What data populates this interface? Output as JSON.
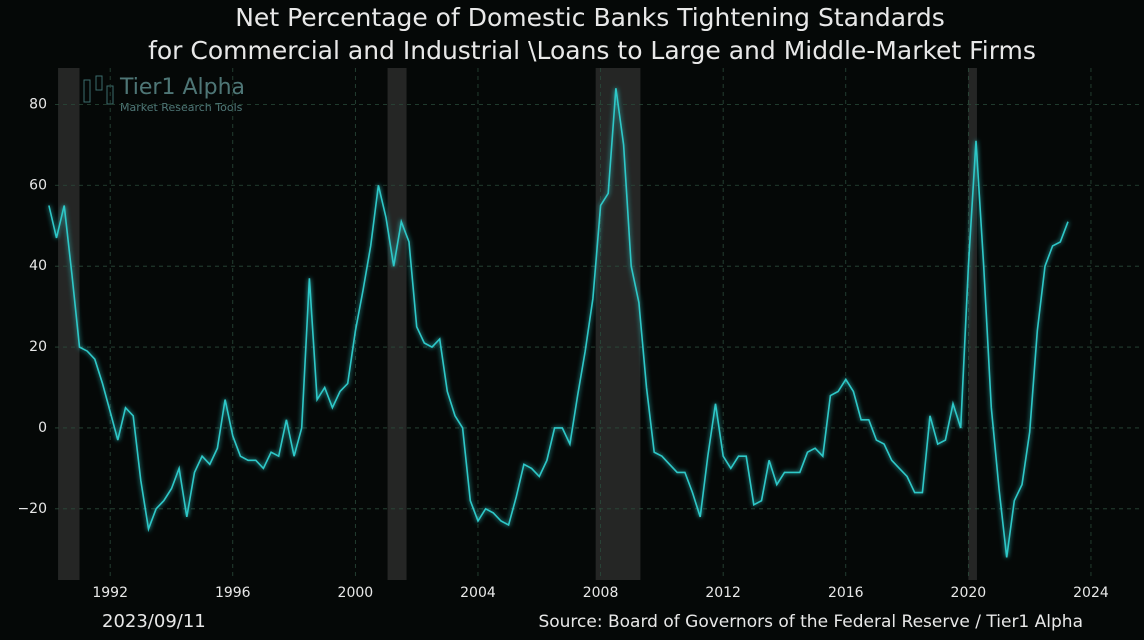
{
  "chart_data": {
    "type": "line",
    "title": [
      "Net Percentage of Domestic Banks Tightening Standards",
      "for Commercial and Industrial \\Loans to Large and Middle-Market Firms"
    ],
    "logo": {
      "name": "Tier1 Alpha",
      "tagline": "Market  Research Tools"
    },
    "date": "2023/09/11",
    "source": "Source: Board of Governors of the Federal Reserve / Tier1 Alpha",
    "x": [
      1990.0,
      1990.25,
      1990.5,
      1990.75,
      1991.0,
      1991.25,
      1991.5,
      1991.75,
      1992.0,
      1992.25,
      1992.5,
      1992.75,
      1993.0,
      1993.25,
      1993.5,
      1993.75,
      1994.0,
      1994.25,
      1994.5,
      1994.75,
      1995.0,
      1995.25,
      1995.5,
      1995.75,
      1996.0,
      1996.25,
      1996.5,
      1996.75,
      1997.0,
      1997.25,
      1997.5,
      1997.75,
      1998.0,
      1998.25,
      1998.5,
      1998.75,
      1999.0,
      1999.25,
      1999.5,
      1999.75,
      2000.0,
      2000.25,
      2000.5,
      2000.75,
      2001.0,
      2001.25,
      2001.5,
      2001.75,
      2002.0,
      2002.25,
      2002.5,
      2002.75,
      2003.0,
      2003.25,
      2003.5,
      2003.75,
      2004.0,
      2004.25,
      2004.5,
      2004.75,
      2005.0,
      2005.25,
      2005.5,
      2005.75,
      2006.0,
      2006.25,
      2006.5,
      2006.75,
      2007.0,
      2007.25,
      2007.5,
      2007.75,
      2008.0,
      2008.25,
      2008.5,
      2008.75,
      2009.0,
      2009.25,
      2009.5,
      2009.75,
      2010.0,
      2010.25,
      2010.5,
      2010.75,
      2011.0,
      2011.25,
      2011.5,
      2011.75,
      2012.0,
      2012.25,
      2012.5,
      2012.75,
      2013.0,
      2013.25,
      2013.5,
      2013.75,
      2014.0,
      2014.25,
      2014.5,
      2014.75,
      2015.0,
      2015.25,
      2015.5,
      2015.75,
      2016.0,
      2016.25,
      2016.5,
      2016.75,
      2017.0,
      2017.25,
      2017.5,
      2017.75,
      2018.0,
      2018.25,
      2018.5,
      2018.75,
      2019.0,
      2019.25,
      2019.5,
      2019.75,
      2020.0,
      2020.25,
      2020.5,
      2020.75,
      2021.0,
      2021.25,
      2021.5,
      2021.75,
      2022.0,
      2022.25,
      2022.5,
      2022.75,
      2023.0,
      2023.25
    ],
    "series": [
      {
        "name": "Net Percentage",
        "color": "#2ec8c8",
        "values": [
          55,
          47,
          55,
          38,
          20,
          19,
          17,
          11,
          4,
          -3,
          5,
          3,
          -13,
          -25,
          -20,
          -18,
          -15,
          -10,
          -22,
          -11,
          -7,
          -9,
          -5,
          7,
          -2,
          -7,
          -8,
          -8,
          -10,
          -6,
          -7,
          2,
          -7,
          0,
          37,
          7,
          10,
          5,
          9,
          11,
          24,
          34,
          45,
          60,
          52,
          40,
          51,
          46,
          25,
          21,
          20,
          22,
          9,
          3,
          0,
          -18,
          -23,
          -20,
          -21,
          -23,
          -24,
          -17,
          -9,
          -10,
          -12,
          -8,
          0,
          0,
          -4,
          8,
          19,
          32,
          55,
          58,
          84,
          70,
          40,
          31,
          10,
          -6,
          -7,
          -9,
          -11,
          -11,
          -16,
          -22,
          -7,
          6,
          -7,
          -10,
          -7,
          -7,
          -19,
          -18,
          -8,
          -14,
          -11,
          -11,
          -11,
          -6,
          -5,
          -7,
          8,
          9,
          12,
          9,
          2,
          2,
          -3,
          -4,
          -8,
          -10,
          -12,
          -16,
          -16,
          3,
          -4,
          -3,
          6,
          0,
          40,
          71,
          40,
          5,
          -15,
          -32,
          -18,
          -14,
          -1,
          24,
          40,
          45,
          46,
          51
        ]
      }
    ],
    "recessions": [
      [
        1990.3,
        1991.0
      ],
      [
        2001.05,
        2001.67
      ],
      [
        2007.84,
        2009.3
      ],
      [
        2020.0,
        2020.28
      ]
    ],
    "xlim": [
      1990.2,
      2025.6
    ],
    "ylim": [
      -37.6,
      89
    ],
    "xticks": [
      1992,
      1996,
      2000,
      2004,
      2008,
      2012,
      2016,
      2020,
      2024
    ],
    "yticks": [
      {
        "value": -20,
        "label": "−20"
      },
      0,
      20,
      40,
      60,
      80
    ],
    "grid": true
  }
}
